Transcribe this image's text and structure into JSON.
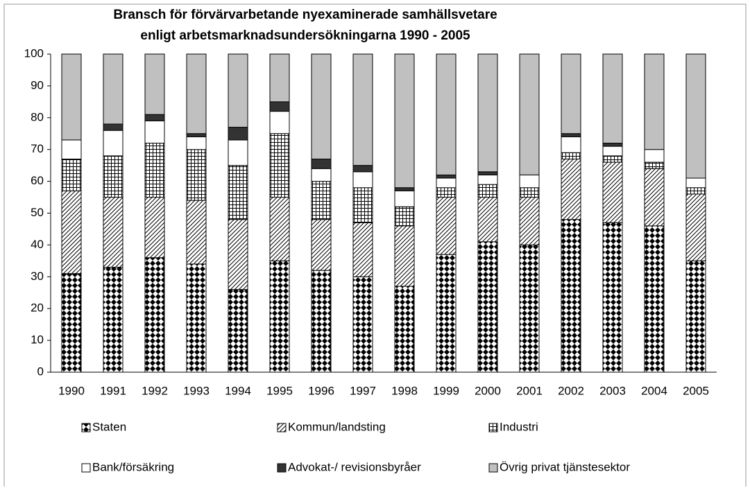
{
  "chart_data": {
    "type": "bar",
    "stacked": true,
    "title": [
      "Bransch för förvärvarbetande nyexaminerade samhällsvetare",
      "enligt arbetsmarknadsundersökningarna 1990 - 2005"
    ],
    "categories": [
      "1990",
      "1991",
      "1992",
      "1993",
      "1994",
      "1995",
      "1996",
      "1997",
      "1998",
      "1999",
      "2000",
      "2001",
      "2002",
      "2003",
      "2004",
      "2005"
    ],
    "series": [
      {
        "name": "Staten",
        "color": "#000000",
        "pattern": "diamond",
        "values": [
          31,
          33,
          36,
          34,
          26,
          35,
          32,
          30,
          27,
          37,
          41,
          40,
          48,
          47,
          46,
          35
        ]
      },
      {
        "name": "Kommun/landsting",
        "color": "#000000",
        "pattern": "hatch",
        "values": [
          26,
          22,
          19,
          20,
          22,
          20,
          16,
          17,
          19,
          18,
          14,
          15,
          19,
          19,
          18,
          21
        ]
      },
      {
        "name": "Industri",
        "color": "#000000",
        "pattern": "grid",
        "values": [
          10,
          13,
          17,
          16,
          17,
          20,
          12,
          11,
          6,
          3,
          4,
          3,
          2,
          2,
          2,
          2
        ]
      },
      {
        "name": "Bank/försäkring",
        "color": "#ffffff",
        "pattern": "solid",
        "values": [
          6,
          8,
          7,
          4,
          8,
          7,
          4,
          5,
          5,
          3,
          3,
          4,
          5,
          3,
          4,
          3
        ]
      },
      {
        "name": "Advokat-/ revisionsbyråer",
        "color": "#333333",
        "pattern": "solid",
        "values": [
          0,
          2,
          2,
          1,
          4,
          3,
          3,
          2,
          1,
          1,
          1,
          0,
          1,
          1,
          0,
          0
        ]
      },
      {
        "name": "Övrig privat tjänstesektor",
        "color": "#c0c0c0",
        "pattern": "solid",
        "values": [
          27,
          22,
          19,
          25,
          23,
          15,
          33,
          35,
          42,
          38,
          37,
          38,
          25,
          28,
          30,
          39
        ]
      }
    ],
    "ylim": [
      0,
      100
    ],
    "yticks": [
      0,
      10,
      20,
      30,
      40,
      50,
      60,
      70,
      80,
      90,
      100
    ],
    "legend": "bottom"
  }
}
